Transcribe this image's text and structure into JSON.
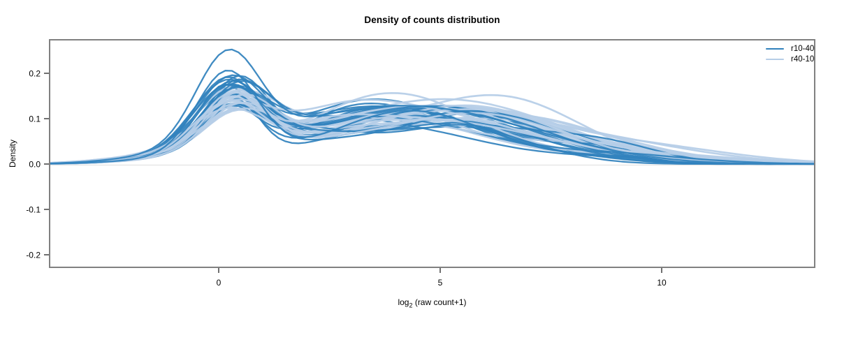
{
  "chart_data": {
    "type": "line",
    "subtype": "overlaid-kernel-density-curves",
    "title": "Density of counts distribution",
    "xlabel": {
      "prefix": "log",
      "sub": "2",
      "rest": " (raw count+1)"
    },
    "ylabel": "Density",
    "x_ticks": [
      0,
      5,
      10
    ],
    "y_ticks": [
      0.2,
      0.1,
      0.0,
      -0.1,
      -0.2
    ],
    "xlim": [
      -3.82,
      13.45
    ],
    "ylim": [
      -0.228,
      0.274
    ],
    "grid": false,
    "zero_line_color": "#e7e7e7",
    "plot_border_color": "#808080",
    "legend_position": "top-right",
    "series": [
      {
        "name": "r10-40",
        "color": "#3182bd",
        "line_width": 2.3,
        "n_curves": 24,
        "peak_density_range": [
          0.12,
          0.235
        ],
        "representative_x": [
          -3,
          -2,
          -1,
          0,
          0.3,
          1,
          2,
          3,
          4,
          4.8,
          6,
          7,
          8,
          9,
          10,
          11,
          12,
          13
        ],
        "representative_y": [
          0.001,
          0.006,
          0.045,
          0.15,
          0.17,
          0.12,
          0.095,
          0.1,
          0.115,
          0.125,
          0.1,
          0.065,
          0.035,
          0.018,
          0.008,
          0.004,
          0.002,
          0.001
        ],
        "components": [
          {
            "mu": [
              -0.9,
              -0.3
            ],
            "sigma": [
              1.25,
              1.4
            ],
            "amp": [
              0.014,
              0.024
            ]
          },
          {
            "mu": [
              0.16,
              0.46
            ],
            "sigma": [
              0.6,
              0.82
            ],
            "amp": [
              0.1,
              0.17
            ]
          },
          {
            "mu": [
              2.0,
              2.9
            ],
            "sigma": [
              1.05,
              1.5
            ],
            "amp": [
              0.028,
              0.06
            ]
          },
          {
            "mu": [
              3.9,
              5.6
            ],
            "sigma": [
              1.45,
              2.1
            ],
            "amp": [
              0.072,
              0.12
            ]
          },
          {
            "mu": [
              6.6,
              8.8
            ],
            "sigma": [
              1.2,
              2.1
            ],
            "amp": [
              0.012,
              0.038
            ]
          }
        ],
        "forced_peak_amps": {
          "22": 0.185,
          "23": 0.215
        }
      },
      {
        "name": "r40-10",
        "color": "#b6cde7",
        "line_width": 2.7,
        "n_curves": 24,
        "peak_density_range": [
          0.1,
          0.16
        ],
        "representative_x": [
          -3,
          -2,
          -1,
          0,
          0.3,
          1,
          2,
          3,
          4,
          4.8,
          6,
          7,
          8,
          9,
          10,
          11,
          12,
          13
        ],
        "representative_y": [
          0.001,
          0.005,
          0.035,
          0.115,
          0.13,
          0.11,
          0.1,
          0.105,
          0.115,
          0.12,
          0.105,
          0.08,
          0.05,
          0.028,
          0.014,
          0.007,
          0.003,
          0.001
        ],
        "components": [
          {
            "mu": [
              -0.9,
              -0.3
            ],
            "sigma": [
              1.3,
              1.45
            ],
            "amp": [
              0.014,
              0.024
            ]
          },
          {
            "mu": [
              0.2,
              0.55
            ],
            "sigma": [
              0.64,
              0.88
            ],
            "amp": [
              0.082,
              0.138
            ]
          },
          {
            "mu": [
              2.1,
              3.0
            ],
            "sigma": [
              1.15,
              1.55
            ],
            "amp": [
              0.034,
              0.065
            ]
          },
          {
            "mu": [
              4.2,
              6.0
            ],
            "sigma": [
              1.55,
              2.25
            ],
            "amp": [
              0.078,
              0.125
            ]
          },
          {
            "mu": [
              7.0,
              9.4
            ],
            "sigma": [
              1.4,
              2.3
            ],
            "amp": [
              0.016,
              0.045
            ]
          }
        ]
      }
    ]
  }
}
